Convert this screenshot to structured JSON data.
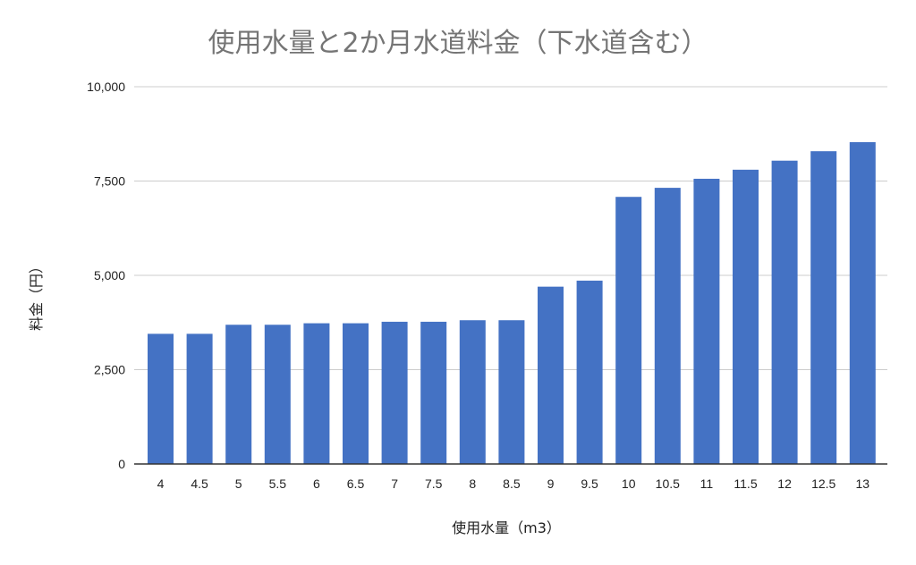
{
  "chart_data": {
    "type": "bar",
    "title": "使用水量と2か月水道料金（下水道含む）",
    "xlabel": "使用水量（m3）",
    "ylabel": "料金（円）",
    "categories": [
      "4",
      "4.5",
      "5",
      "5.5",
      "6",
      "6.5",
      "7",
      "7.5",
      "8",
      "8.5",
      "9",
      "9.5",
      "10",
      "10.5",
      "11",
      "11.5",
      "12",
      "12.5",
      "13"
    ],
    "values": [
      3450,
      3450,
      3690,
      3690,
      3730,
      3730,
      3770,
      3770,
      3810,
      3810,
      4700,
      4860,
      7080,
      7320,
      7560,
      7800,
      8040,
      8290,
      8530
    ],
    "ylim": [
      0,
      10000
    ],
    "yticks": [
      0,
      2500,
      5000,
      7500,
      10000
    ],
    "ytick_labels": [
      "0",
      "2,500",
      "5,000",
      "7,500",
      "10,000"
    ],
    "grid": true,
    "legend": "none",
    "bar_color": "#4472C4"
  }
}
